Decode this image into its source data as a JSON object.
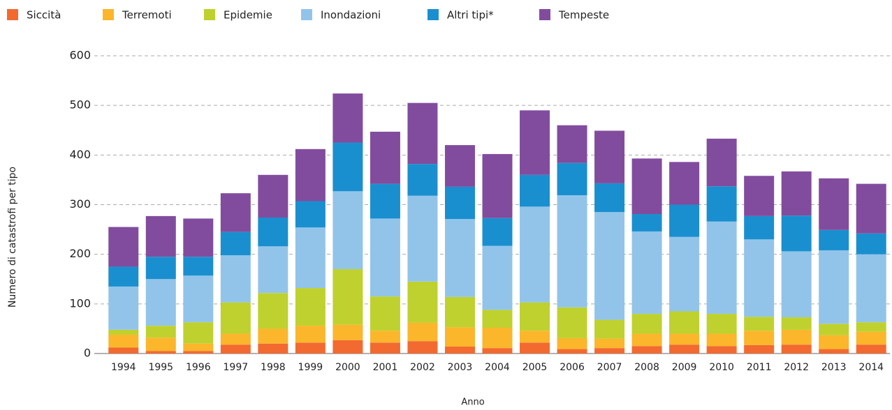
{
  "chart_data": {
    "type": "bar",
    "stacked": true,
    "x_label": "Anno",
    "y_label": "Numero di catastrofi per tipo",
    "categories": [
      "1994",
      "1995",
      "1996",
      "1997",
      "1998",
      "1999",
      "2000",
      "2001",
      "2002",
      "2003",
      "2004",
      "2005",
      "2006",
      "2007",
      "2008",
      "2009",
      "2010",
      "2011",
      "2012",
      "2013",
      "2014"
    ],
    "series": [
      {
        "name": "Siccità",
        "color": "#f26a30",
        "values": [
          12,
          5,
          5,
          18,
          20,
          22,
          27,
          22,
          25,
          14,
          11,
          22,
          9,
          11,
          15,
          18,
          15,
          17,
          18,
          9,
          18
        ]
      },
      {
        "name": "Terremoti",
        "color": "#fbb62b",
        "values": [
          26,
          27,
          15,
          22,
          30,
          34,
          31,
          24,
          37,
          39,
          41,
          24,
          22,
          19,
          25,
          22,
          25,
          29,
          30,
          28,
          26
        ]
      },
      {
        "name": "Epidemie",
        "color": "#bfd12e",
        "values": [
          10,
          24,
          43,
          63,
          72,
          76,
          112,
          69,
          83,
          61,
          36,
          57,
          62,
          38,
          40,
          45,
          40,
          28,
          25,
          23,
          19
        ]
      },
      {
        "name": "Inondazioni",
        "color": "#92c4ea",
        "values": [
          87,
          94,
          94,
          95,
          94,
          122,
          157,
          157,
          173,
          157,
          129,
          193,
          226,
          217,
          166,
          150,
          186,
          156,
          133,
          148,
          137
        ]
      },
      {
        "name": "Altri tipi*",
        "color": "#1a8fcf",
        "values": [
          40,
          45,
          38,
          47,
          58,
          53,
          98,
          70,
          64,
          65,
          56,
          64,
          65,
          58,
          35,
          65,
          71,
          47,
          72,
          41,
          42
        ]
      },
      {
        "name": "Tempeste",
        "color": "#824c9e",
        "values": [
          80,
          82,
          77,
          78,
          86,
          105,
          99,
          105,
          123,
          84,
          129,
          130,
          76,
          106,
          112,
          86,
          96,
          81,
          89,
          104,
          100
        ]
      }
    ],
    "ylim": [
      0,
      600
    ],
    "yticks": [
      0,
      100,
      200,
      300,
      400,
      500,
      600
    ],
    "grid": true,
    "legend": "top"
  }
}
